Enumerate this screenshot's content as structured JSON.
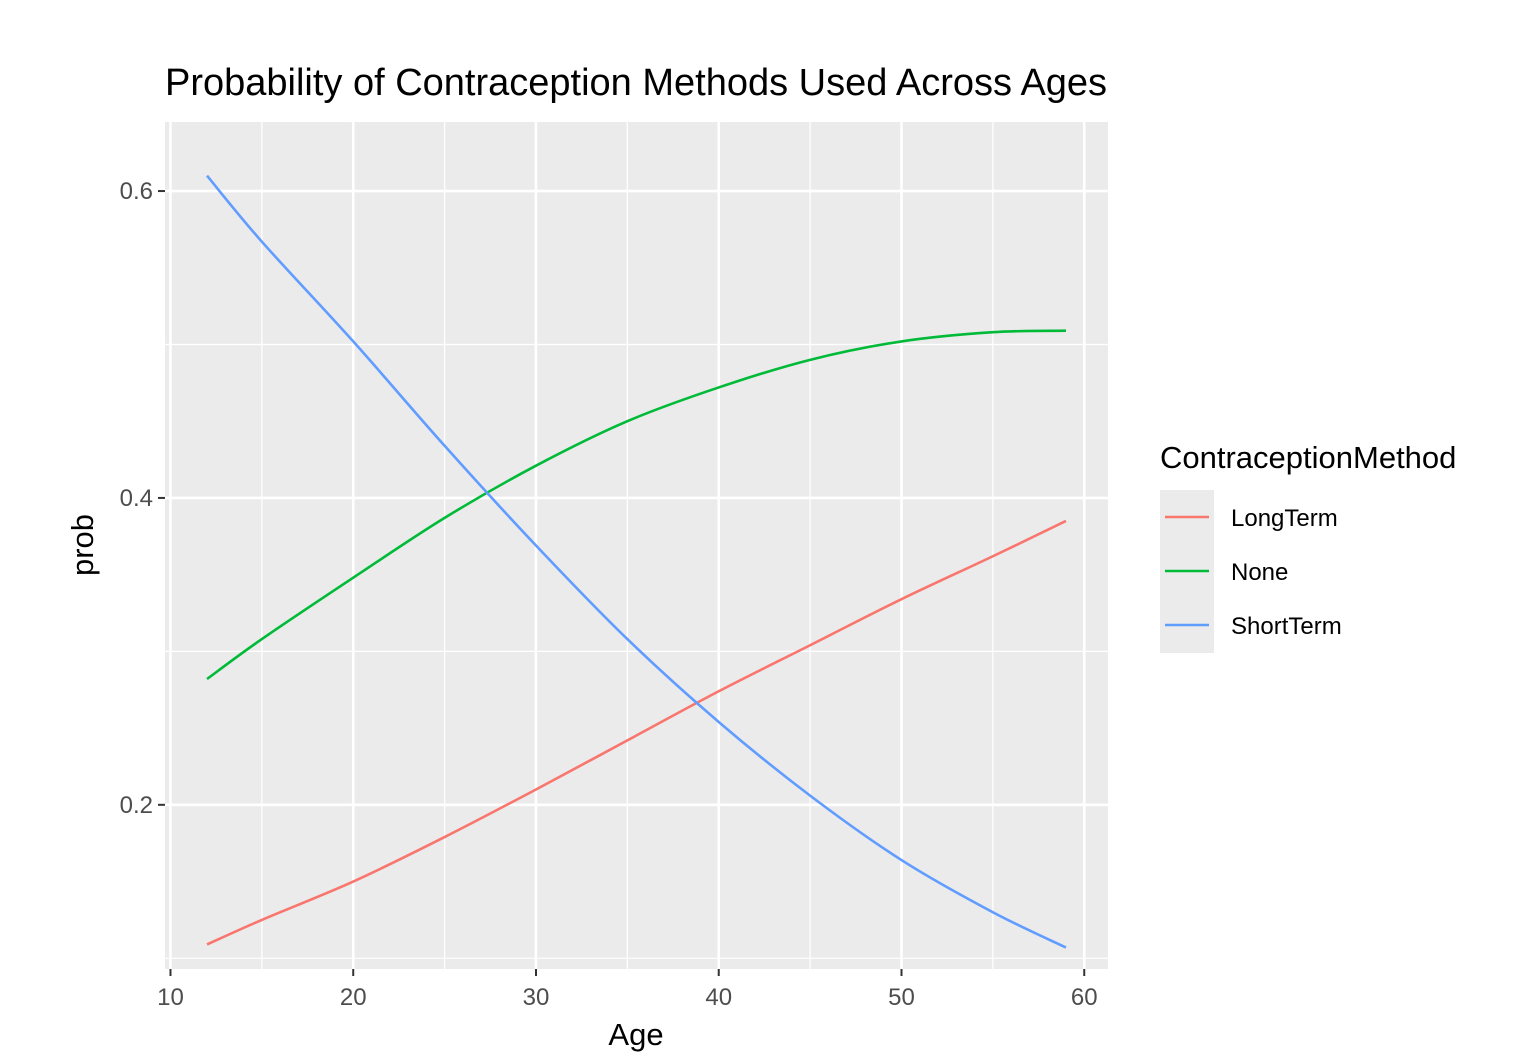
{
  "chart_data": {
    "type": "line",
    "title": "Probability of Contraception Methods Used Across Ages",
    "xlabel": "Age",
    "ylabel": "prob",
    "xlim": [
      9.7,
      61.3
    ],
    "ylim": [
      0.093,
      0.645
    ],
    "x_ticks": [
      10,
      20,
      30,
      40,
      50,
      60
    ],
    "x_tick_labels": [
      "10",
      "20",
      "30",
      "40",
      "50",
      "60"
    ],
    "y_ticks": [
      0.2,
      0.4,
      0.6
    ],
    "y_tick_labels": [
      "0.2",
      "0.4",
      "0.6"
    ],
    "y_minor_ticks": [
      0.1,
      0.3,
      0.5
    ],
    "x": [
      12,
      15,
      20,
      25,
      30,
      35,
      40,
      45,
      50,
      55,
      59
    ],
    "series": [
      {
        "name": "LongTerm",
        "color": "#F8766D",
        "values": [
          0.109,
          0.125,
          0.15,
          0.179,
          0.21,
          0.242,
          0.274,
          0.304,
          0.334,
          0.362,
          0.385
        ]
      },
      {
        "name": "None",
        "color": "#00BA38",
        "values": [
          0.282,
          0.308,
          0.348,
          0.387,
          0.421,
          0.45,
          0.472,
          0.49,
          0.502,
          0.508,
          0.509
        ]
      },
      {
        "name": "ShortTerm",
        "color": "#619CFF",
        "values": [
          0.61,
          0.567,
          0.502,
          0.434,
          0.369,
          0.308,
          0.254,
          0.206,
          0.164,
          0.13,
          0.107
        ]
      }
    ],
    "grid": true,
    "legend": {
      "title": "ContraceptionMethod",
      "position": "right"
    }
  }
}
